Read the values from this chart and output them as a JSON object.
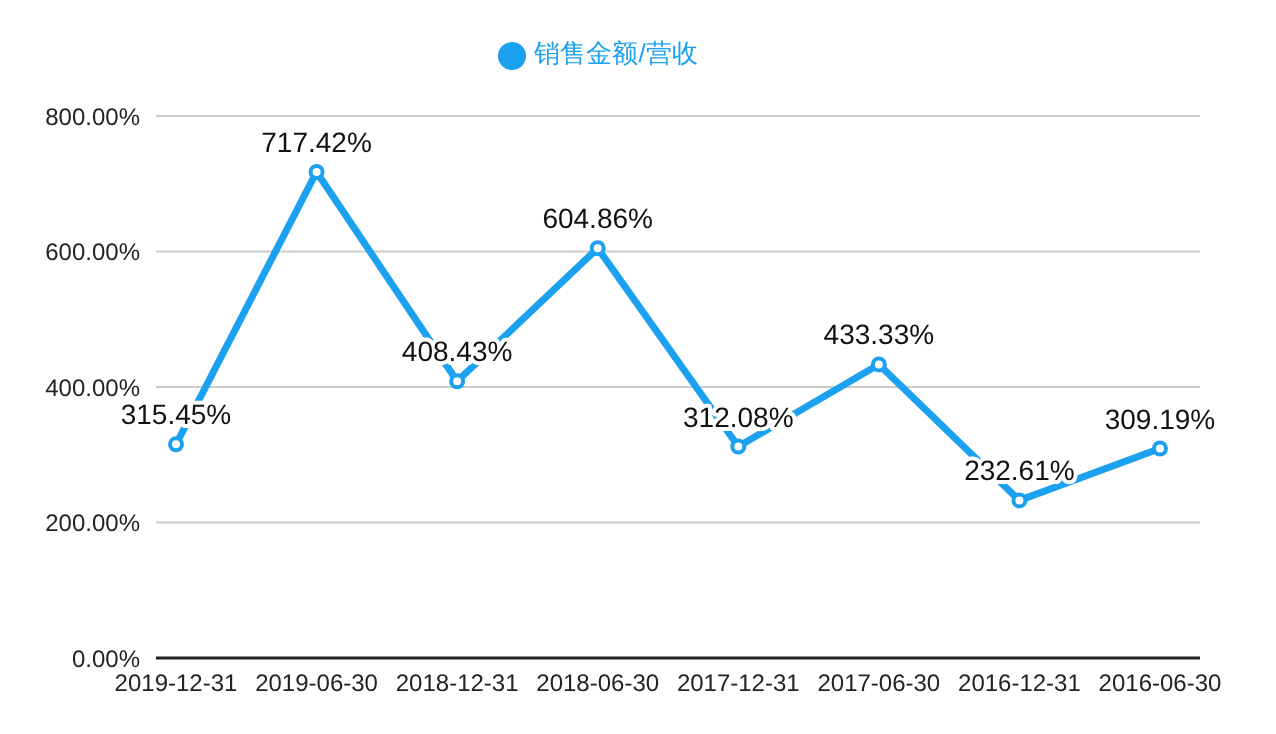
{
  "chart_data": {
    "type": "line",
    "categories": [
      "2019-12-31",
      "2019-06-30",
      "2018-12-31",
      "2018-06-30",
      "2017-12-31",
      "2017-06-30",
      "2016-12-31",
      "2016-06-30"
    ],
    "series": [
      {
        "name": "销售金额/营收",
        "color": "#1ba1ef",
        "values": [
          315.45,
          717.42,
          408.43,
          604.86,
          312.08,
          433.33,
          232.61,
          309.19
        ],
        "value_labels": [
          "315.45%",
          "717.42%",
          "408.43%",
          "604.86%",
          "312.08%",
          "433.33%",
          "232.61%",
          "309.19%"
        ]
      }
    ],
    "ylim": [
      0,
      800
    ],
    "yticks": [
      {
        "value": 0,
        "label": "0.00%"
      },
      {
        "value": 200,
        "label": "200.00%"
      },
      {
        "value": 400,
        "label": "400.00%"
      },
      {
        "value": 600,
        "label": "600.00%"
      },
      {
        "value": 800,
        "label": "800.00%"
      }
    ],
    "grid": "y",
    "legend": "top",
    "marker": "circle",
    "line_style": "solid"
  }
}
